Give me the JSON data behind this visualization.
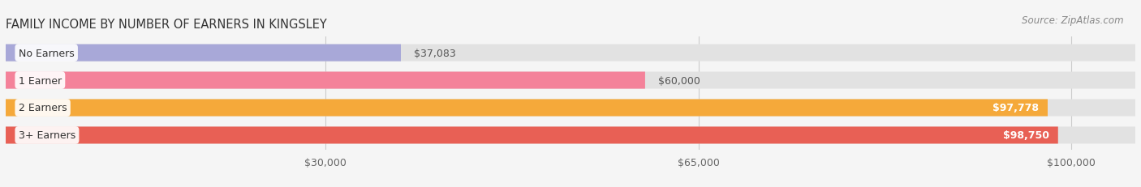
{
  "title": "FAMILY INCOME BY NUMBER OF EARNERS IN KINGSLEY",
  "source": "Source: ZipAtlas.com",
  "categories": [
    "No Earners",
    "1 Earner",
    "2 Earners",
    "3+ Earners"
  ],
  "values": [
    37083,
    60000,
    97778,
    98750
  ],
  "bar_colors": [
    "#a8a8d8",
    "#f4829a",
    "#f5a93a",
    "#e86055"
  ],
  "value_labels": [
    "$37,083",
    "$60,000",
    "$97,778",
    "$98,750"
  ],
  "label_inside": [
    false,
    false,
    true,
    true
  ],
  "x_ticks": [
    30000,
    65000,
    100000
  ],
  "x_tick_labels": [
    "$30,000",
    "$65,000",
    "$100,000"
  ],
  "x_min": 0,
  "x_max": 106000,
  "background_color": "#f5f5f5",
  "bar_background_color": "#e2e2e2",
  "title_fontsize": 10.5,
  "source_fontsize": 8.5,
  "label_fontsize": 9,
  "tick_fontsize": 9
}
